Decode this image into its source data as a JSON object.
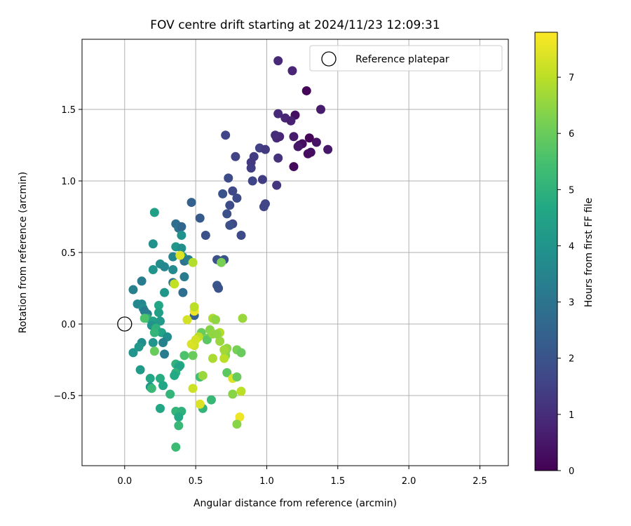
{
  "chart_data": {
    "type": "scatter",
    "title": "FOV centre drift starting at 2024/11/23 12:09:31",
    "xlabel": "Angular distance from reference (arcmin)",
    "ylabel": "Rotation from reference (arcmin)",
    "xlim": [
      -0.3,
      2.7
    ],
    "ylim": [
      -0.99,
      1.99
    ],
    "xticks": [
      0.0,
      0.5,
      1.0,
      1.5,
      2.0,
      2.5
    ],
    "xtick_labels": [
      "0.0",
      "0.5",
      "1.0",
      "1.5",
      "2.0",
      "2.5"
    ],
    "yticks": [
      -0.5,
      0.0,
      0.5,
      1.0,
      1.5
    ],
    "ytick_labels": [
      "−0.5",
      "0.0",
      "0.5",
      "1.0",
      "1.5"
    ],
    "grid": true,
    "legend": {
      "placement": "top-right",
      "entries": [
        "Reference platepar"
      ]
    },
    "reference_point": {
      "x": 0.0,
      "y": 0.0
    },
    "colorbar": {
      "label": "Hours from first FF file",
      "colormap": "viridis",
      "range": [
        0,
        7.8
      ],
      "ticks": [
        0,
        1,
        2,
        3,
        4,
        5,
        6,
        7
      ],
      "tick_labels": [
        "0",
        "1",
        "2",
        "3",
        "4",
        "5",
        "6",
        "7"
      ]
    },
    "points": [
      [
        1.08,
        1.84,
        0.9
      ],
      [
        1.18,
        1.77,
        0.8
      ],
      [
        1.28,
        1.63,
        0.1
      ],
      [
        1.38,
        1.5,
        0.6
      ],
      [
        1.08,
        1.47,
        0.9
      ],
      [
        1.13,
        1.44,
        0.8
      ],
      [
        1.2,
        1.46,
        0.3
      ],
      [
        1.17,
        1.42,
        0.7
      ],
      [
        1.3,
        1.3,
        0.1
      ],
      [
        1.35,
        1.27,
        0.4
      ],
      [
        1.31,
        1.2,
        0.3
      ],
      [
        1.43,
        1.22,
        0.5
      ],
      [
        1.23,
        1.25,
        0.4
      ],
      [
        1.25,
        1.26,
        0.3
      ],
      [
        1.19,
        1.31,
        0.6
      ],
      [
        1.07,
        1.3,
        0.9
      ],
      [
        1.09,
        1.31,
        0.8
      ],
      [
        1.06,
        1.32,
        1.0
      ],
      [
        1.08,
        1.16,
        1.1
      ],
      [
        1.19,
        1.1,
        0.2
      ],
      [
        1.07,
        0.97,
        1.2
      ],
      [
        1.22,
        1.24,
        0.5
      ],
      [
        1.29,
        1.19,
        0.3
      ],
      [
        0.95,
        1.23,
        1.5
      ],
      [
        0.99,
        1.22,
        1.3
      ],
      [
        0.91,
        1.17,
        1.4
      ],
      [
        0.89,
        1.13,
        1.3
      ],
      [
        0.89,
        1.09,
        1.4
      ],
      [
        0.97,
        1.01,
        1.4
      ],
      [
        0.9,
        1.0,
        1.6
      ],
      [
        0.78,
        1.17,
        1.5
      ],
      [
        0.71,
        1.32,
        1.6
      ],
      [
        0.73,
        1.02,
        1.8
      ],
      [
        0.69,
        0.91,
        2.0
      ],
      [
        0.76,
        0.93,
        1.7
      ],
      [
        0.79,
        0.88,
        1.8
      ],
      [
        0.74,
        0.83,
        1.8
      ],
      [
        0.72,
        0.77,
        1.9
      ],
      [
        0.76,
        0.7,
        1.7
      ],
      [
        0.74,
        0.69,
        1.9
      ],
      [
        0.82,
        0.62,
        1.8
      ],
      [
        0.98,
        0.82,
        1.6
      ],
      [
        0.99,
        0.84,
        1.6
      ],
      [
        0.65,
        0.45,
        1.9
      ],
      [
        0.7,
        0.45,
        2.0
      ],
      [
        0.65,
        0.27,
        2.1
      ],
      [
        0.66,
        0.25,
        2.0
      ],
      [
        0.57,
        0.62,
        1.9
      ],
      [
        0.53,
        0.74,
        2.2
      ],
      [
        0.47,
        0.85,
        2.4
      ],
      [
        0.49,
        0.06,
        2.4
      ],
      [
        0.36,
        0.7,
        2.8
      ],
      [
        0.38,
        0.67,
        3.0
      ],
      [
        0.4,
        0.68,
        2.6
      ],
      [
        0.4,
        0.62,
        3.9
      ],
      [
        0.21,
        0.78,
        4.4
      ],
      [
        0.2,
        0.56,
        3.9
      ],
      [
        0.36,
        0.54,
        4.1
      ],
      [
        0.4,
        0.53,
        3.8
      ],
      [
        0.34,
        0.47,
        3.6
      ],
      [
        0.41,
        0.47,
        4.2
      ],
      [
        0.42,
        0.44,
        3.0
      ],
      [
        0.45,
        0.45,
        3.3
      ],
      [
        0.25,
        0.42,
        3.8
      ],
      [
        0.28,
        0.4,
        3.6
      ],
      [
        0.34,
        0.38,
        3.7
      ],
      [
        0.2,
        0.38,
        4.0
      ],
      [
        0.42,
        0.33,
        3.2
      ],
      [
        0.34,
        0.29,
        3.0
      ],
      [
        0.41,
        0.22,
        2.8
      ],
      [
        0.28,
        0.22,
        4.1
      ],
      [
        0.06,
        0.24,
        3.4
      ],
      [
        0.12,
        0.3,
        3.2
      ],
      [
        0.09,
        0.14,
        3.6
      ],
      [
        0.12,
        0.14,
        3.6
      ],
      [
        0.13,
        0.11,
        3.8
      ],
      [
        0.14,
        0.09,
        3.2
      ],
      [
        0.16,
        0.07,
        3.3
      ],
      [
        0.24,
        0.13,
        4.6
      ],
      [
        0.24,
        0.08,
        4.4
      ],
      [
        0.16,
        0.04,
        5.0
      ],
      [
        0.2,
        0.02,
        4.4
      ],
      [
        0.25,
        0.02,
        4.2
      ],
      [
        0.19,
        -0.01,
        4.0
      ],
      [
        0.22,
        -0.03,
        5.0
      ],
      [
        0.26,
        -0.06,
        4.5
      ],
      [
        0.21,
        -0.06,
        5.1
      ],
      [
        0.3,
        -0.09,
        3.8
      ],
      [
        0.27,
        -0.13,
        3.4
      ],
      [
        0.2,
        -0.13,
        4.0
      ],
      [
        0.12,
        -0.13,
        3.8
      ],
      [
        0.1,
        -0.16,
        4.1
      ],
      [
        0.06,
        -0.2,
        4.0
      ],
      [
        0.21,
        -0.19,
        6.0
      ],
      [
        0.28,
        -0.21,
        3.2
      ],
      [
        0.36,
        -0.28,
        5.0
      ],
      [
        0.39,
        -0.29,
        4.7
      ],
      [
        0.38,
        -0.3,
        4.5
      ],
      [
        0.11,
        -0.32,
        4.2
      ],
      [
        0.36,
        -0.34,
        5.0
      ],
      [
        0.35,
        -0.36,
        4.7
      ],
      [
        0.18,
        -0.38,
        4.6
      ],
      [
        0.25,
        -0.38,
        4.8
      ],
      [
        0.27,
        -0.43,
        4.6
      ],
      [
        0.18,
        -0.44,
        4.0
      ],
      [
        0.19,
        -0.45,
        5.2
      ],
      [
        0.32,
        -0.49,
        5.1
      ],
      [
        0.36,
        -0.61,
        5.1
      ],
      [
        0.4,
        -0.61,
        5.0
      ],
      [
        0.38,
        -0.65,
        4.7
      ],
      [
        0.25,
        -0.59,
        4.6
      ],
      [
        0.38,
        -0.71,
        5.2
      ],
      [
        0.36,
        -0.86,
        5.3
      ],
      [
        0.55,
        -0.59,
        5.1
      ],
      [
        0.61,
        -0.53,
        5.2
      ],
      [
        0.53,
        -0.37,
        5.4
      ],
      [
        0.42,
        -0.22,
        5.6
      ],
      [
        0.48,
        -0.22,
        6.0
      ],
      [
        0.55,
        -0.36,
        6.6
      ],
      [
        0.48,
        -0.45,
        7.2
      ],
      [
        0.53,
        -0.56,
        7.4
      ],
      [
        0.54,
        -0.06,
        6.0
      ],
      [
        0.58,
        -0.1,
        6.3
      ],
      [
        0.58,
        -0.11,
        5.8
      ],
      [
        0.6,
        -0.04,
        6.4
      ],
      [
        0.62,
        -0.07,
        6.5
      ],
      [
        0.62,
        0.04,
        6.8
      ],
      [
        0.64,
        0.03,
        6.5
      ],
      [
        0.67,
        -0.06,
        6.9
      ],
      [
        0.67,
        -0.12,
        6.6
      ],
      [
        0.71,
        -0.19,
        6.2
      ],
      [
        0.72,
        -0.17,
        6.5
      ],
      [
        0.71,
        -0.22,
        6.4
      ],
      [
        0.7,
        -0.24,
        7.0
      ],
      [
        0.79,
        -0.18,
        6.2
      ],
      [
        0.82,
        -0.2,
        6.0
      ],
      [
        0.72,
        -0.34,
        5.8
      ],
      [
        0.76,
        -0.38,
        7.4
      ],
      [
        0.79,
        -0.37,
        6.0
      ],
      [
        0.76,
        -0.49,
        6.4
      ],
      [
        0.82,
        -0.47,
        7.0
      ],
      [
        0.81,
        -0.65,
        7.6
      ],
      [
        0.79,
        -0.7,
        6.4
      ],
      [
        0.83,
        0.04,
        6.6
      ],
      [
        0.62,
        -0.24,
        6.8
      ],
      [
        0.49,
        -0.15,
        7.2
      ],
      [
        0.47,
        -0.14,
        7.4
      ],
      [
        0.52,
        -0.09,
        7.0
      ],
      [
        0.5,
        -0.11,
        7.3
      ],
      [
        0.49,
        0.09,
        7.6
      ],
      [
        0.49,
        0.12,
        7.0
      ],
      [
        0.44,
        0.03,
        7.3
      ],
      [
        0.39,
        0.48,
        7.4
      ],
      [
        0.48,
        0.43,
        6.9
      ],
      [
        0.68,
        0.43,
        6.2
      ],
      [
        0.35,
        0.28,
        7.1
      ],
      [
        0.14,
        0.04,
        5.6
      ],
      [
        0.65,
        -0.07,
        6.5
      ],
      [
        0.7,
        -0.18,
        6.7
      ]
    ]
  }
}
